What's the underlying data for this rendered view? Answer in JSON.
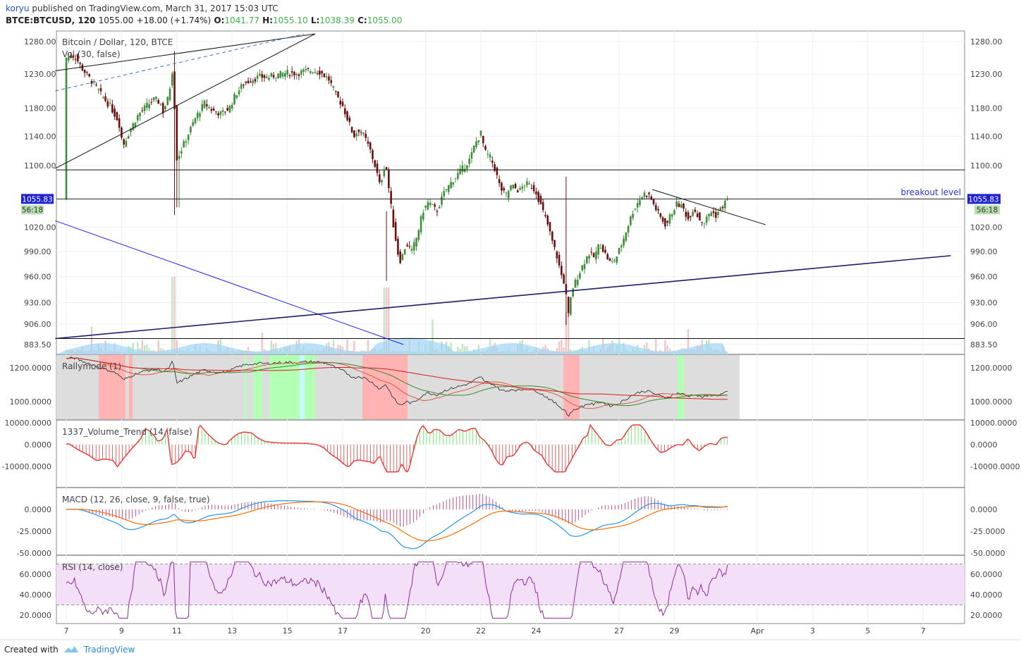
{
  "header": {
    "user": "koryu",
    "published_text": "published on TradingView.com, March 31, 2017 15:03 UTC",
    "symbol": "BTCE:BTCUSD, 120",
    "last": "1055.00",
    "change": "+18.00 (+1.74%)",
    "o_label": "O:",
    "o_value": "1041.77",
    "h_label": "H:",
    "h_value": "1055.10",
    "l_label": "L:",
    "l_value": "1038.39",
    "c_label": "C:",
    "c_value": "1055.00"
  },
  "footer": {
    "created_with": "Created with",
    "brand": "TradingView"
  },
  "colors": {
    "up": "#3f8f3a",
    "down": "#6b0f0f",
    "macd": "#2196f3",
    "signal": "#ff6d00",
    "rsi": "#8e2a9c",
    "trend_blue": "#1a1aff",
    "vol_green": "#58e858",
    "vol_red": "#e03c3c"
  },
  "chart_data": [
    {
      "type": "candlestick",
      "title": "Bitcoin / Dollar, 120, BTCE",
      "subtitle": "Vol (30, false)",
      "x_ticks": [
        "7",
        "9",
        "11",
        "13",
        "15",
        "17",
        "20",
        "22",
        "24",
        "27",
        "29",
        "Apr",
        "3",
        "5",
        "7"
      ],
      "y_ticks": [
        "1280.00",
        "1230.00",
        "1180.00",
        "1140.00",
        "1100.00",
        "1020.00",
        "990.00",
        "960.00",
        "930.00",
        "906.00",
        "883.50"
      ],
      "y_range": [
        883.5,
        1280
      ],
      "y_scale": "log",
      "price_label": "1055.83",
      "countdown_label": "56:18",
      "annotation": "breakout level",
      "horizontal_levels": [
        1094,
        1055.83,
        890
      ],
      "close_path": [
        [
          7.0,
          1255
        ],
        [
          7.3,
          1258
        ],
        [
          7.6,
          1237
        ],
        [
          8.0,
          1215
        ],
        [
          8.3,
          1197
        ],
        [
          8.6,
          1182
        ],
        [
          8.9,
          1160
        ],
        [
          9.05,
          1127
        ],
        [
          9.3,
          1148
        ],
        [
          9.6,
          1170
        ],
        [
          9.9,
          1183
        ],
        [
          10.2,
          1193
        ],
        [
          10.4,
          1187
        ],
        [
          10.5,
          1175
        ],
        [
          10.7,
          1196
        ],
        [
          10.85,
          1240
        ],
        [
          11.0,
          1110
        ],
        [
          11.1,
          1116
        ],
        [
          11.4,
          1142
        ],
        [
          11.7,
          1168
        ],
        [
          12.0,
          1187
        ],
        [
          12.3,
          1176
        ],
        [
          12.6,
          1172
        ],
        [
          12.9,
          1180
        ],
        [
          13.1,
          1198
        ],
        [
          13.4,
          1215
        ],
        [
          13.7,
          1222
        ],
        [
          14.0,
          1226
        ],
        [
          14.3,
          1225
        ],
        [
          14.6,
          1229
        ],
        [
          15.0,
          1232
        ],
        [
          15.3,
          1231
        ],
        [
          15.6,
          1234
        ],
        [
          15.9,
          1236
        ],
        [
          16.2,
          1233
        ],
        [
          16.5,
          1222
        ],
        [
          16.75,
          1200
        ],
        [
          17.0,
          1183
        ],
        [
          17.2,
          1162
        ],
        [
          17.4,
          1140
        ],
        [
          17.6,
          1150
        ],
        [
          17.8,
          1138
        ],
        [
          18.0,
          1120
        ],
        [
          18.2,
          1096
        ],
        [
          18.35,
          1072
        ],
        [
          18.55,
          1105
        ],
        [
          18.7,
          1060
        ],
        [
          18.85,
          1018
        ],
        [
          19.0,
          988
        ],
        [
          19.1,
          978
        ],
        [
          19.3,
          1000
        ],
        [
          19.5,
          990
        ],
        [
          19.7,
          1010
        ],
        [
          19.9,
          1040
        ],
        [
          20.1,
          1052
        ],
        [
          20.4,
          1040
        ],
        [
          20.7,
          1066
        ],
        [
          21.0,
          1081
        ],
        [
          21.3,
          1094
        ],
        [
          21.6,
          1108
        ],
        [
          21.8,
          1130
        ],
        [
          22.0,
          1144
        ],
        [
          22.15,
          1118
        ],
        [
          22.35,
          1110
        ],
        [
          22.5,
          1096
        ],
        [
          22.7,
          1070
        ],
        [
          22.9,
          1060
        ],
        [
          23.1,
          1073
        ],
        [
          23.4,
          1066
        ],
        [
          23.6,
          1076
        ],
        [
          23.8,
          1073
        ],
        [
          24.0,
          1065
        ],
        [
          24.2,
          1044
        ],
        [
          24.4,
          1025
        ],
        [
          24.6,
          1000
        ],
        [
          24.75,
          984
        ],
        [
          24.9,
          963
        ],
        [
          25.05,
          950
        ],
        [
          25.15,
          912
        ],
        [
          25.3,
          945
        ],
        [
          25.5,
          960
        ],
        [
          25.7,
          975
        ],
        [
          25.9,
          988
        ],
        [
          26.1,
          983
        ],
        [
          26.3,
          1000
        ],
        [
          26.5,
          987
        ],
        [
          26.7,
          975
        ],
        [
          26.9,
          983
        ],
        [
          27.1,
          1000
        ],
        [
          27.3,
          1020
        ],
        [
          27.5,
          1040
        ],
        [
          27.7,
          1053
        ],
        [
          27.9,
          1063
        ],
        [
          28.1,
          1060
        ],
        [
          28.3,
          1045
        ],
        [
          28.5,
          1032
        ],
        [
          28.7,
          1022
        ],
        [
          28.9,
          1038
        ],
        [
          29.1,
          1050
        ],
        [
          29.3,
          1045
        ],
        [
          29.5,
          1030
        ],
        [
          29.7,
          1045
        ],
        [
          29.9,
          1030
        ],
        [
          30.1,
          1026
        ],
        [
          30.3,
          1040
        ],
        [
          30.5,
          1035
        ],
        [
          30.7,
          1044
        ],
        [
          30.9,
          1055
        ]
      ],
      "trendlines": [
        {
          "name": "wedge-upper",
          "from": [
            6.6,
            1235
          ],
          "to": [
            16.0,
            1292
          ]
        },
        {
          "name": "wedge-lower",
          "from": [
            6.6,
            1096
          ],
          "to": [
            16.0,
            1292
          ]
        },
        {
          "name": "wedge-mid-dashed",
          "from": [
            6.6,
            1205
          ],
          "to": [
            15.6,
            1292
          ]
        },
        {
          "name": "descending-blue",
          "from": [
            6.6,
            1028
          ],
          "to": [
            19.2,
            883.5
          ]
        },
        {
          "name": "rising-support",
          "from": [
            6.6,
            890
          ],
          "to": [
            39.0,
            985
          ]
        },
        {
          "name": "short-resistance",
          "from": [
            28.2,
            1068
          ],
          "to": [
            32.3,
            1023
          ]
        }
      ]
    },
    {
      "type": "line",
      "title": "Rallymode (1)",
      "y_ticks": [
        "1200.0000",
        "1000.0000"
      ],
      "y_range": [
        900,
        1300
      ]
    },
    {
      "type": "bar",
      "title": "1337_Volume_Trend (14, false)",
      "y_ticks": [
        "10000.0000",
        "0.0000",
        "-10000.0000"
      ],
      "y_range": [
        -13000,
        10000
      ]
    },
    {
      "type": "line",
      "title": "MACD (12, 26, close, 9, false, true)",
      "y_ticks": [
        "0.0000",
        "-25.0000",
        "-50.0000"
      ],
      "y_range": [
        -50,
        22
      ]
    },
    {
      "type": "line",
      "title": "RSI (14, close)",
      "y_ticks": [
        "60.0000",
        "40.0000",
        "20.0000"
      ],
      "y_range": [
        15,
        75
      ],
      "bands": [
        30,
        70
      ]
    }
  ]
}
